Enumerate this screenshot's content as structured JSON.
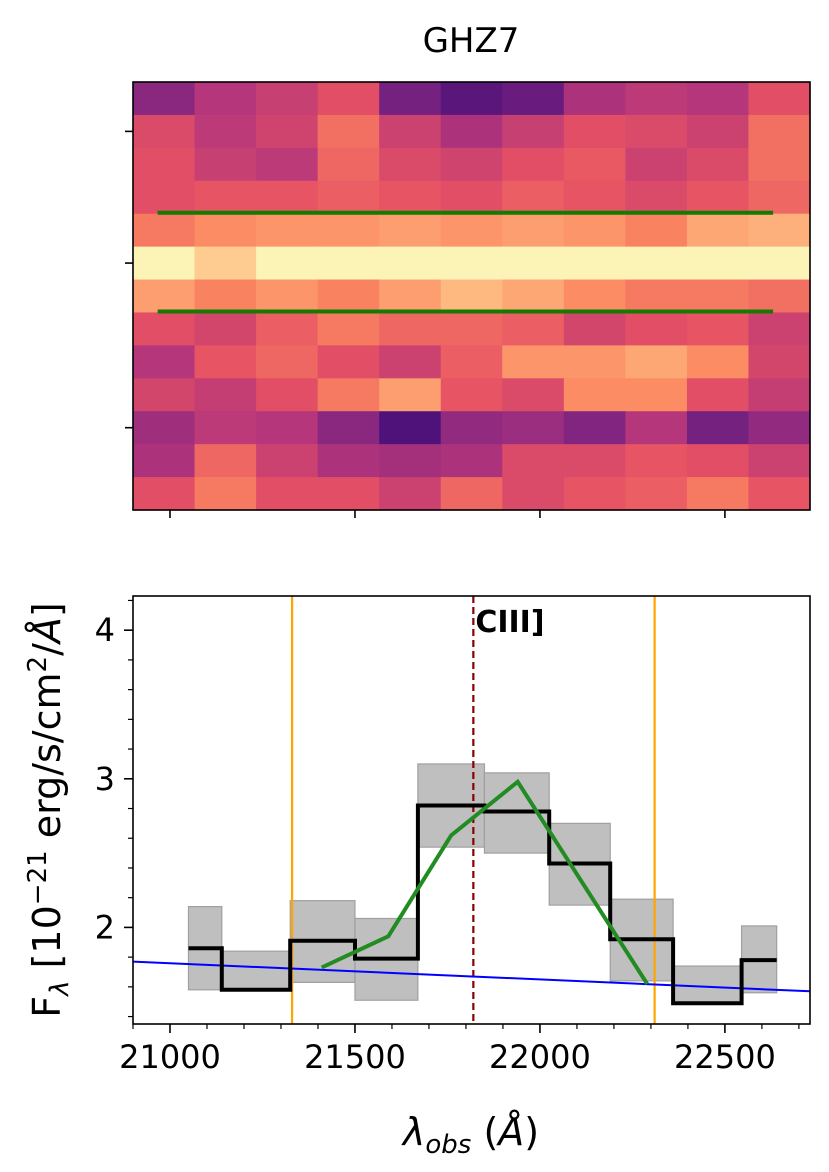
{
  "chart_data": [
    {
      "type": "heatmap",
      "title": "GHZ7",
      "colormap": "magma",
      "rows": 13,
      "cols": 11,
      "values": [
        [
          0.4,
          0.5,
          0.55,
          0.62,
          0.35,
          0.28,
          0.32,
          0.48,
          0.52,
          0.5,
          0.62
        ],
        [
          0.6,
          0.52,
          0.57,
          0.7,
          0.56,
          0.48,
          0.55,
          0.62,
          0.6,
          0.56,
          0.7
        ],
        [
          0.62,
          0.55,
          0.52,
          0.68,
          0.6,
          0.57,
          0.62,
          0.65,
          0.56,
          0.6,
          0.7
        ],
        [
          0.62,
          0.64,
          0.64,
          0.66,
          0.64,
          0.62,
          0.66,
          0.64,
          0.6,
          0.64,
          0.68
        ],
        [
          0.72,
          0.76,
          0.78,
          0.78,
          0.8,
          0.78,
          0.8,
          0.78,
          0.74,
          0.82,
          0.84
        ],
        [
          0.98,
          0.9,
          0.98,
          0.98,
          0.98,
          0.98,
          0.98,
          0.98,
          0.98,
          0.98,
          0.98
        ],
        [
          0.8,
          0.74,
          0.78,
          0.74,
          0.8,
          0.86,
          0.82,
          0.76,
          0.72,
          0.72,
          0.7
        ],
        [
          0.62,
          0.58,
          0.66,
          0.72,
          0.68,
          0.68,
          0.66,
          0.58,
          0.62,
          0.64,
          0.56
        ],
        [
          0.5,
          0.64,
          0.68,
          0.62,
          0.56,
          0.66,
          0.78,
          0.78,
          0.82,
          0.76,
          0.58
        ],
        [
          0.58,
          0.54,
          0.62,
          0.72,
          0.8,
          0.64,
          0.6,
          0.76,
          0.76,
          0.62,
          0.54
        ],
        [
          0.45,
          0.52,
          0.5,
          0.4,
          0.25,
          0.42,
          0.44,
          0.38,
          0.5,
          0.35,
          0.42
        ],
        [
          0.48,
          0.68,
          0.56,
          0.48,
          0.46,
          0.48,
          0.6,
          0.6,
          0.64,
          0.62,
          0.56
        ],
        [
          0.62,
          0.72,
          0.62,
          0.62,
          0.56,
          0.68,
          0.6,
          0.64,
          0.66,
          0.72,
          0.64
        ]
      ],
      "aperture_lines": {
        "rows": [
          4,
          7
        ],
        "color": "#157a00"
      }
    },
    {
      "type": "line",
      "xlabel": "λobs (Å)",
      "ylabel": "Fλ [10−21 erg/s/cm2/Å]",
      "xlim": [
        20900,
        22730
      ],
      "ylim": [
        1.35,
        4.23
      ],
      "xticks": [
        "21000",
        "21500",
        "22000",
        "22500"
      ],
      "xtick_values": [
        21000,
        21500,
        22000,
        22500
      ],
      "yticks": [
        "2",
        "3",
        "4"
      ],
      "ytick_values": [
        2,
        3,
        4
      ],
      "yminor_step": 0.2,
      "xminor_step": 100,
      "flux_step": {
        "color": "#000000",
        "edges": [
          21050,
          21140,
          21325,
          21500,
          21670,
          21850,
          22025,
          22190,
          22360,
          22545,
          22640
        ],
        "values": [
          1.86,
          1.58,
          1.91,
          1.79,
          2.82,
          2.78,
          2.43,
          1.92,
          1.49,
          1.78
        ],
        "upper": [
          2.14,
          1.84,
          2.18,
          2.06,
          3.1,
          3.04,
          2.7,
          2.19,
          1.74,
          2.01
        ],
        "lower": [
          1.58,
          1.58,
          1.63,
          1.51,
          2.54,
          2.5,
          2.15,
          1.64,
          1.49,
          1.56
        ]
      },
      "error_band_color": "#bfbfbf",
      "fit_line": {
        "color": "#228b22",
        "x": [
          21410,
          21590,
          21760,
          21940,
          22290
        ],
        "y": [
          1.73,
          1.94,
          2.62,
          2.98,
          1.62
        ]
      },
      "continuum": {
        "color": "#0000ff",
        "x": [
          20900,
          22730
        ],
        "y": [
          1.77,
          1.57
        ]
      },
      "window_lines": {
        "x": [
          21330,
          22310
        ],
        "color": "#ffa500"
      },
      "line_marker": {
        "x": 21820,
        "label": "CIII]",
        "color": "#8b0000"
      }
    }
  ]
}
